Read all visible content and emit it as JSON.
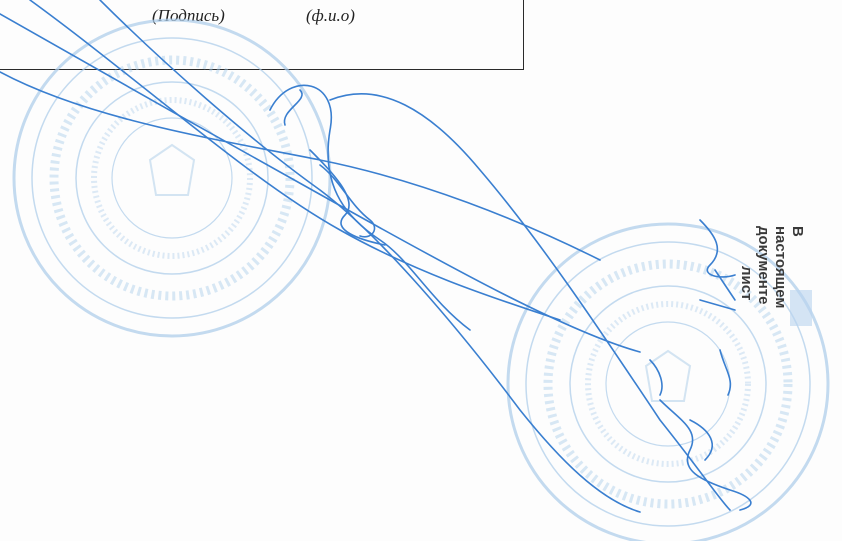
{
  "signature_block": {
    "signature_label": "(Подпись)",
    "name_label": "(ф.и.о)"
  },
  "stamp_note": {
    "line1": "В",
    "line2": "настоящем",
    "line3": "документе",
    "line4": "лист"
  },
  "colors": {
    "ink": "#3a7fd0",
    "stamp": "#9fc4e4",
    "text": "#222222"
  },
  "icons": {
    "round_seal_left": "round-seal-icon",
    "round_seal_right": "round-seal-icon",
    "handwritten_signature": "handwritten-signature"
  }
}
